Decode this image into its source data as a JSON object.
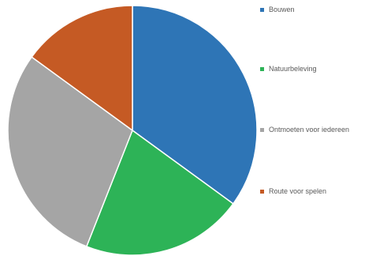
{
  "chart_data": {
    "type": "pie",
    "title": "",
    "categories": [
      "Bouwen",
      "Natuurbeleving",
      "Ontmoeten voor iedereen",
      "Route voor spelen"
    ],
    "values": [
      35,
      21,
      29,
      15
    ],
    "colors": [
      "#2E75B6",
      "#2DB357",
      "#A5A5A5",
      "#C55A24"
    ],
    "legend_position": "right",
    "start_angle_deg": 0,
    "direction": "clockwise"
  }
}
